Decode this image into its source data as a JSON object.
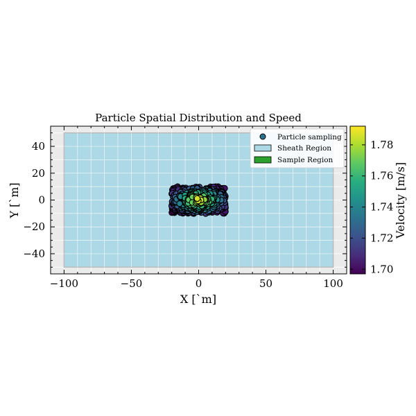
{
  "chart_data": {
    "type": "scatter",
    "title": "Particle Spatial Distribution and Speed",
    "xlabel": "X [`m]",
    "ylabel": "Y [`m]",
    "xlim": [
      -110,
      110
    ],
    "ylim": [
      -55,
      55
    ],
    "x_ticks": [
      -100,
      -50,
      0,
      50,
      100
    ],
    "y_ticks": [
      -40,
      -20,
      0,
      20,
      40
    ],
    "grid": true,
    "legend_position": "top-right",
    "legend": [
      {
        "label": "Particle sampling",
        "kind": "marker"
      },
      {
        "label": "Sheath Region",
        "kind": "patch",
        "color": "#add8e6"
      },
      {
        "label": "Sample Region",
        "kind": "patch",
        "color": "#2ca02c"
      }
    ],
    "regions": {
      "sheath": {
        "x": [
          -100,
          100
        ],
        "y": [
          -50,
          50
        ],
        "color": "#add8e6"
      },
      "sample": {
        "x": [
          -20,
          20
        ],
        "y": [
          -10,
          10
        ]
      }
    },
    "particles": {
      "count": 400,
      "x_range": [
        -20,
        20
      ],
      "y_range": [
        -10,
        10
      ],
      "speed_center": 1.79,
      "speed_min": 1.697,
      "colormap": "viridis"
    },
    "colorbar": {
      "label": "Velocity [m/s]",
      "range": [
        1.697,
        1.792
      ],
      "ticks": [
        1.7,
        1.72,
        1.74,
        1.76,
        1.78
      ],
      "tick_labels": [
        "1.70",
        "1.72",
        "1.74",
        "1.76",
        "1.78"
      ]
    },
    "colors": {
      "axes_background": "#ebebeb",
      "grid": "#ffffff",
      "sheath_edge": "#bbbbbb",
      "marker_edge": "#000000"
    }
  }
}
